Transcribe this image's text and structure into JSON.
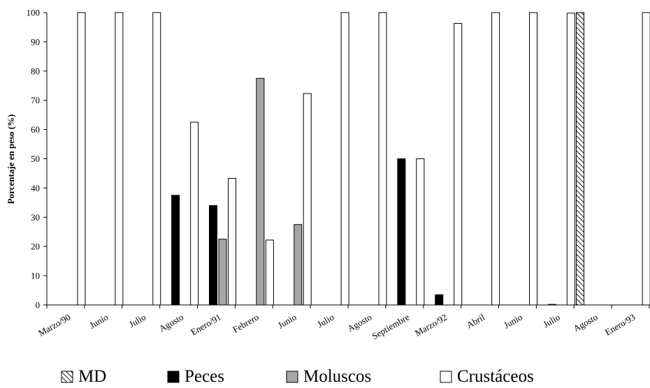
{
  "chart_data": {
    "type": "bar",
    "title": "",
    "xlabel": "",
    "ylabel": "Porcentaje en peso (%)",
    "ylim": [
      0,
      100
    ],
    "y_ticks": [
      0,
      10,
      20,
      30,
      40,
      50,
      60,
      70,
      80,
      90,
      100
    ],
    "grid": false,
    "legend_position": "bottom",
    "categories": [
      "Marzo/90",
      "Junio",
      "Julio",
      "Agosto",
      "Enero/91",
      "Febrero",
      "Junio",
      "Julio",
      "Agosto",
      "Septiembre",
      "Marzo/92",
      "Abril",
      "Junio",
      "Julio",
      "Agosto",
      "Enero/93"
    ],
    "series": [
      {
        "name": "MD",
        "color": "#ffffff",
        "pattern": "diagonal-hatch",
        "values": [
          0,
          0,
          0,
          0,
          0,
          0,
          0,
          0,
          0,
          0,
          0,
          0,
          0,
          0,
          100,
          0
        ]
      },
      {
        "name": "Peces",
        "color": "#000000",
        "values": [
          0,
          0,
          0,
          37.5,
          34,
          0,
          0,
          0,
          0,
          50,
          3.5,
          0,
          0,
          0.2,
          0,
          0
        ]
      },
      {
        "name": "Moluscos",
        "color": "#a6a6a6",
        "values": [
          0,
          0,
          0,
          0,
          22.5,
          77.5,
          27.5,
          0,
          0,
          0,
          0,
          0,
          0,
          0,
          0,
          0
        ]
      },
      {
        "name": "Crustáceos",
        "color": "#ffffff",
        "values": [
          100,
          100,
          100,
          62.5,
          43.3,
          22.2,
          72.3,
          100,
          100,
          50,
          96.3,
          100,
          100,
          99.8,
          0,
          100
        ]
      }
    ]
  }
}
